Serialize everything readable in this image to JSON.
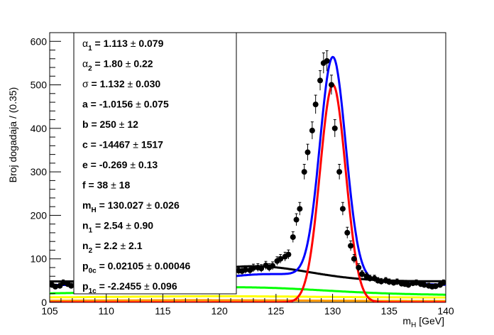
{
  "chart_data": {
    "type": "scatter",
    "title": "",
    "xlabel": "m_H [GeV]",
    "xlabel_main": "m",
    "xlabel_sub": "H",
    "xlabel_unit": " [GeV]",
    "ylabel": "Broj dogadaja / (0.35)",
    "xlim": [
      105,
      140
    ],
    "ylim": [
      0,
      620
    ],
    "xticks": [
      105,
      110,
      115,
      120,
      125,
      130,
      135,
      140
    ],
    "yticks": [
      0,
      100,
      200,
      300,
      400,
      500,
      600
    ],
    "grid": false,
    "fit_parameters": [
      {
        "name": "α",
        "sub": "1",
        "value": "1.113",
        "error": "0.079"
      },
      {
        "name": "α",
        "sub": "2",
        "value": "1.80",
        "error": "0.22"
      },
      {
        "name": "σ",
        "sub": "",
        "value": "1.132",
        "error": "0.030"
      },
      {
        "name": "a",
        "sub": "",
        "value": "-1.0156",
        "error": "0.075"
      },
      {
        "name": "b",
        "sub": "",
        "value": "250",
        "error": "12"
      },
      {
        "name": "c",
        "sub": "",
        "value": "-14467",
        "error": "1517"
      },
      {
        "name": "e",
        "sub": "",
        "value": "-0.269",
        "error": "0.13"
      },
      {
        "name": "f",
        "sub": "",
        "value": "38",
        "error": "18"
      },
      {
        "name": "m",
        "sub": "H",
        "value": "130.027",
        "error": "0.026"
      },
      {
        "name": "n",
        "sub": "1",
        "value": "2.54",
        "error": "0.90"
      },
      {
        "name": "n",
        "sub": "2",
        "value": "2.2",
        "error": "2.1"
      },
      {
        "name": "p",
        "sub": "0c",
        "value": "0.02105",
        "error": "0.00046"
      },
      {
        "name": "p",
        "sub": "1c",
        "value": "-2.2455",
        "error": "0.096"
      }
    ],
    "data_points": {
      "x": [
        105.2,
        105.5,
        105.9,
        106.2,
        106.6,
        106.9,
        107.3,
        107.6,
        107.9,
        108.3,
        108.6,
        109.0,
        109.3,
        109.7,
        110.0,
        110.3,
        110.7,
        111.0,
        111.4,
        111.7,
        112.1,
        112.4,
        112.7,
        113.1,
        113.4,
        113.8,
        114.1,
        114.5,
        114.8,
        115.1,
        115.5,
        115.8,
        116.2,
        116.5,
        116.9,
        117.2,
        117.5,
        117.9,
        118.2,
        118.6,
        118.9,
        119.3,
        119.6,
        119.9,
        120.3,
        120.6,
        121.0,
        121.3,
        121.7,
        122.0,
        122.3,
        122.7,
        123.0,
        123.4,
        123.7,
        124.1,
        124.4,
        124.7,
        125.1,
        125.4,
        125.8,
        126.1,
        126.5,
        126.8,
        127.1,
        127.5,
        127.8,
        128.2,
        128.5,
        128.9,
        129.2,
        129.5,
        129.9,
        130.2,
        130.6,
        130.9,
        131.3,
        131.6,
        131.9,
        132.3,
        132.6,
        133.0,
        133.3,
        133.7,
        134.0,
        134.3,
        134.7,
        135.0,
        135.4,
        135.7,
        136.1,
        136.4,
        136.7,
        137.1,
        137.4,
        137.8,
        138.1,
        138.5,
        138.8,
        139.1,
        139.5,
        139.8
      ],
      "y": [
        40,
        36,
        38,
        45,
        42,
        38,
        44,
        40,
        43,
        46,
        44,
        47,
        45,
        48,
        50,
        47,
        49,
        52,
        50,
        53,
        51,
        55,
        53,
        56,
        54,
        57,
        55,
        58,
        57,
        60,
        58,
        62,
        60,
        61,
        63,
        62,
        64,
        63,
        66,
        65,
        67,
        66,
        68,
        67,
        70,
        69,
        71,
        70,
        73,
        72,
        75,
        74,
        79,
        80,
        78,
        85,
        80,
        84,
        95,
        100,
        105,
        110,
        150,
        190,
        215,
        300,
        345,
        395,
        455,
        510,
        550,
        555,
        500,
        400,
        300,
        215,
        160,
        130,
        100,
        80,
        65,
        60,
        55,
        55,
        50,
        48,
        50,
        47,
        45,
        47,
        43,
        42,
        40,
        44,
        45,
        42,
        40,
        38,
        36,
        37,
        40,
        45
      ]
    },
    "series": [
      {
        "name": "",
        "color": "#0000ff",
        "role": "total fit"
      },
      {
        "name": "",
        "color": "#ff0000",
        "role": "signal"
      },
      {
        "name": "",
        "color": "#000000",
        "role": "background"
      },
      {
        "name": "",
        "color": "#00ff00",
        "role": "component"
      },
      {
        "name": "",
        "color": "#ffff00",
        "role": "component"
      },
      {
        "name": "",
        "color": "#ff9900",
        "role": "component"
      }
    ]
  }
}
